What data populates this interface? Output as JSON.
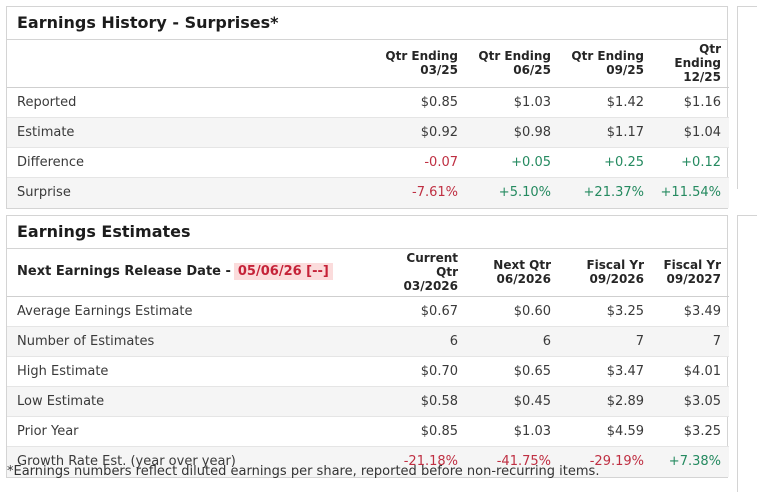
{
  "colors": {
    "negative": "#bf2f42",
    "positive": "#258a60",
    "release_highlight_bg": "#fbdcdc",
    "release_text": "#c52238"
  },
  "history": {
    "title": "Earnings History - Surprises*",
    "columns": [
      {
        "l1": "Qtr Ending",
        "l2": "03/25"
      },
      {
        "l1": "Qtr Ending",
        "l2": "06/25"
      },
      {
        "l1": "Qtr Ending",
        "l2": "09/25"
      },
      {
        "l1": "Qtr Ending",
        "l2": "12/25"
      }
    ],
    "rows": [
      {
        "label": "Reported",
        "cells": [
          {
            "t": "$0.85",
            "c": ""
          },
          {
            "t": "$1.03",
            "c": ""
          },
          {
            "t": "$1.42",
            "c": ""
          },
          {
            "t": "$1.16",
            "c": ""
          }
        ]
      },
      {
        "label": "Estimate",
        "cells": [
          {
            "t": "$0.92",
            "c": ""
          },
          {
            "t": "$0.98",
            "c": ""
          },
          {
            "t": "$1.17",
            "c": ""
          },
          {
            "t": "$1.04",
            "c": ""
          }
        ]
      },
      {
        "label": "Difference",
        "cells": [
          {
            "t": "-0.07",
            "c": "neg"
          },
          {
            "t": "+0.05",
            "c": "pos"
          },
          {
            "t": "+0.25",
            "c": "pos"
          },
          {
            "t": "+0.12",
            "c": "pos"
          }
        ]
      },
      {
        "label": "Surprise",
        "cells": [
          {
            "t": "-7.61%",
            "c": "neg"
          },
          {
            "t": "+5.10%",
            "c": "pos"
          },
          {
            "t": "+21.37%",
            "c": "pos"
          },
          {
            "t": "+11.54%",
            "c": "pos"
          }
        ]
      }
    ]
  },
  "estimates": {
    "title": "Earnings Estimates",
    "release_label": "Next Earnings Release Date -",
    "release_date": "05/06/26 [--]",
    "columns": [
      {
        "l1": "Current Qtr",
        "l2": "03/2026"
      },
      {
        "l1": "Next Qtr",
        "l2": "06/2026"
      },
      {
        "l1": "Fiscal Yr",
        "l2": "09/2026"
      },
      {
        "l1": "Fiscal Yr",
        "l2": "09/2027"
      }
    ],
    "rows": [
      {
        "label": "Average Earnings Estimate",
        "cells": [
          {
            "t": "$0.67",
            "c": ""
          },
          {
            "t": "$0.60",
            "c": ""
          },
          {
            "t": "$3.25",
            "c": ""
          },
          {
            "t": "$3.49",
            "c": ""
          }
        ]
      },
      {
        "label": "Number of Estimates",
        "cells": [
          {
            "t": "6",
            "c": ""
          },
          {
            "t": "6",
            "c": ""
          },
          {
            "t": "7",
            "c": ""
          },
          {
            "t": "7",
            "c": ""
          }
        ]
      },
      {
        "label": "High Estimate",
        "cells": [
          {
            "t": "$0.70",
            "c": ""
          },
          {
            "t": "$0.65",
            "c": ""
          },
          {
            "t": "$3.47",
            "c": ""
          },
          {
            "t": "$4.01",
            "c": ""
          }
        ]
      },
      {
        "label": "Low Estimate",
        "cells": [
          {
            "t": "$0.58",
            "c": ""
          },
          {
            "t": "$0.45",
            "c": ""
          },
          {
            "t": "$2.89",
            "c": ""
          },
          {
            "t": "$3.05",
            "c": ""
          }
        ]
      },
      {
        "label": "Prior Year",
        "cells": [
          {
            "t": "$0.85",
            "c": ""
          },
          {
            "t": "$1.03",
            "c": ""
          },
          {
            "t": "$4.59",
            "c": ""
          },
          {
            "t": "$3.25",
            "c": ""
          }
        ]
      },
      {
        "label": "Growth Rate Est. (year over year)",
        "cells": [
          {
            "t": "-21.18%",
            "c": "neg"
          },
          {
            "t": "-41.75%",
            "c": "neg"
          },
          {
            "t": "-29.19%",
            "c": "neg"
          },
          {
            "t": "+7.38%",
            "c": "pos"
          }
        ]
      }
    ]
  },
  "page": {
    "footnote": "*Earnings numbers reflect diluted earnings per share, reported before non-recurring items."
  }
}
